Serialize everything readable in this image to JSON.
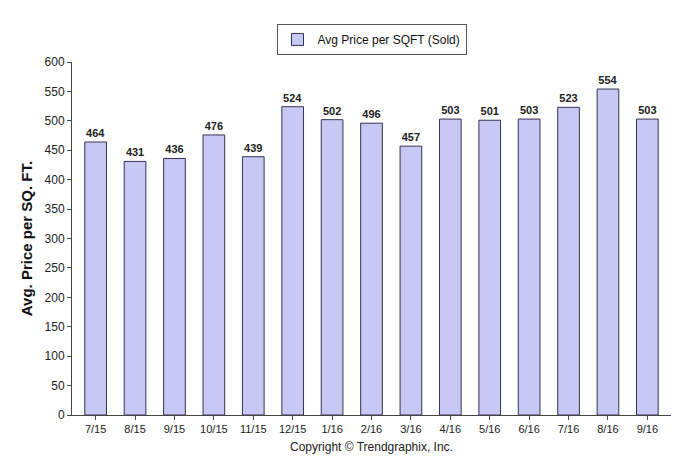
{
  "chart_data": {
    "type": "bar",
    "x_label": "Copyright © Trendgraphix, Inc.",
    "y_label": "Avg. Price per SQ. FT.",
    "categories": [
      "7/15",
      "8/15",
      "9/15",
      "10/15",
      "11/15",
      "12/15",
      "1/16",
      "2/16",
      "3/16",
      "4/16",
      "5/16",
      "6/16",
      "7/16",
      "8/16",
      "9/16"
    ],
    "series": [
      {
        "name": "Avg Price per SQFT (Sold)",
        "color": "#c8c8f4",
        "values": [
          464,
          431,
          436,
          476,
          439,
          524,
          502,
          496,
          457,
          503,
          501,
          503,
          523,
          554,
          503
        ]
      }
    ],
    "ylim": [
      0,
      600
    ],
    "yticks": [
      0,
      50,
      100,
      150,
      200,
      250,
      300,
      350,
      400,
      450,
      500,
      550,
      600
    ],
    "grid": false,
    "legend": "top",
    "data_labels": true
  }
}
